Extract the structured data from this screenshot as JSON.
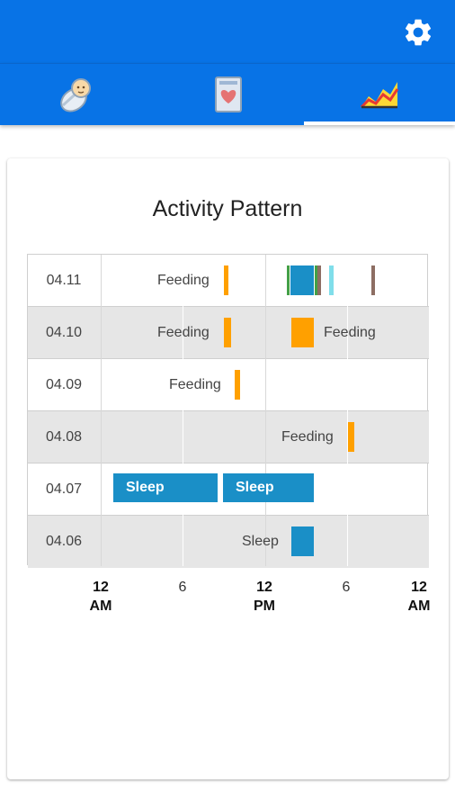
{
  "colors": {
    "header": "#0873e6",
    "feeding": "#ffa000",
    "sleep": "#1a8fc7",
    "green": "#43a047",
    "cyan": "#80deea",
    "brown": "#8d6e63"
  },
  "header": {
    "settings_icon": "gear-icon"
  },
  "tabs": [
    {
      "icon": "baby-icon",
      "active": false
    },
    {
      "icon": "heart-card-icon",
      "active": false
    },
    {
      "icon": "chart-icon",
      "active": true
    }
  ],
  "chart": {
    "title": "Activity Pattern",
    "rows": [
      {
        "date": "04.11"
      },
      {
        "date": "04.10"
      },
      {
        "date": "04.09"
      },
      {
        "date": "04.08"
      },
      {
        "date": "04.07"
      },
      {
        "date": "04.06"
      }
    ],
    "labels": {
      "feeding": "Feeding",
      "sleep": "Sleep"
    },
    "ticks": [
      {
        "top": "12",
        "bottom": "AM"
      },
      {
        "top": "6",
        "bottom": ""
      },
      {
        "top": "12",
        "bottom": "PM"
      },
      {
        "top": "6",
        "bottom": ""
      },
      {
        "top": "12",
        "bottom": "AM"
      }
    ]
  }
}
